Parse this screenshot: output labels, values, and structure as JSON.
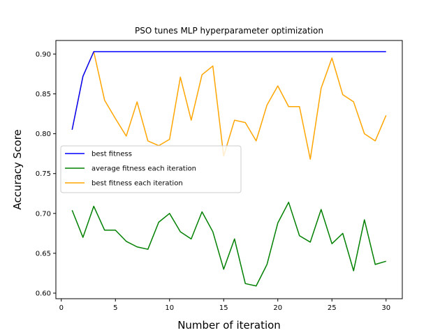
{
  "chart_data": {
    "type": "line",
    "title": "PSO tunes MLP hyperparameter optimization",
    "xlabel": "Number of iteration",
    "ylabel": "Accuracy Score",
    "xlim": [
      -0.5,
      31.5
    ],
    "ylim": [
      0.593,
      0.917
    ],
    "xticks": [
      0,
      5,
      10,
      15,
      20,
      25,
      30
    ],
    "yticks": [
      0.6,
      0.65,
      0.7,
      0.75,
      0.8,
      0.85,
      0.9
    ],
    "ytick_labels": [
      "0.60",
      "0.65",
      "0.70",
      "0.75",
      "0.80",
      "0.85",
      "0.90"
    ],
    "grid": false,
    "legend_position": "center-left",
    "x": [
      1,
      2,
      3,
      4,
      5,
      6,
      7,
      8,
      9,
      10,
      11,
      12,
      13,
      14,
      15,
      16,
      17,
      18,
      19,
      20,
      21,
      22,
      23,
      24,
      25,
      26,
      27,
      28,
      29,
      30
    ],
    "series": [
      {
        "name": "best fitness",
        "color": "#0000ff",
        "values": [
          0.805,
          0.872,
          0.903,
          0.903,
          0.903,
          0.903,
          0.903,
          0.903,
          0.903,
          0.903,
          0.903,
          0.903,
          0.903,
          0.903,
          0.903,
          0.903,
          0.903,
          0.903,
          0.903,
          0.903,
          0.903,
          0.903,
          0.903,
          0.903,
          0.903,
          0.903,
          0.903,
          0.903,
          0.903,
          0.903
        ]
      },
      {
        "name": "average fitness each iteration",
        "color": "#008000",
        "values": [
          0.704,
          0.67,
          0.709,
          0.679,
          0.679,
          0.665,
          0.658,
          0.655,
          0.689,
          0.7,
          0.677,
          0.668,
          0.702,
          0.677,
          0.63,
          0.668,
          0.612,
          0.609,
          0.636,
          0.688,
          0.714,
          0.672,
          0.664,
          0.705,
          0.662,
          0.675,
          0.628,
          0.692,
          0.636,
          0.64
        ]
      },
      {
        "name": "best fitness each iteration",
        "color": "#ffa500",
        "values": [
          0.805,
          0.872,
          0.903,
          0.842,
          0.819,
          0.797,
          0.84,
          0.791,
          0.785,
          0.793,
          0.871,
          0.817,
          0.874,
          0.885,
          0.772,
          0.817,
          0.814,
          0.791,
          0.836,
          0.86,
          0.834,
          0.834,
          0.768,
          0.857,
          0.895,
          0.849,
          0.84,
          0.8,
          0.791,
          0.823
        ]
      }
    ]
  }
}
